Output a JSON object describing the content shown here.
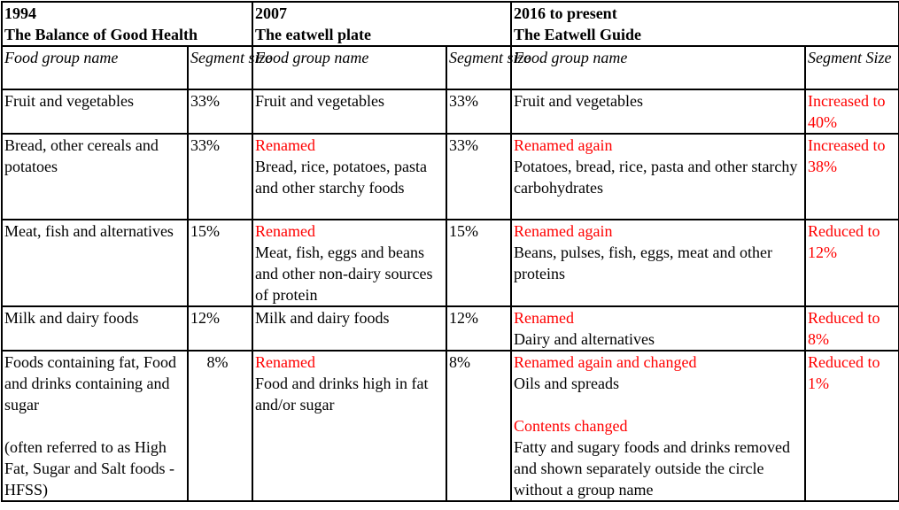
{
  "periods": [
    {
      "year": "1994",
      "model": "The Balance of Good Health"
    },
    {
      "year": "2007",
      "model": "The eatwell plate"
    },
    {
      "year": "2016 to present",
      "model": "The Eatwell Guide"
    }
  ],
  "column_headers": {
    "name_col": "Food group name",
    "size_col_a": "Segment size",
    "size_col_c": "Segment Size"
  },
  "rows": [
    {
      "p1_name": "Fruit and vegetables",
      "p1_size": "33%",
      "p2_name": "Fruit and vegetables",
      "p2_size": "33%",
      "p3_name": "Fruit and vegetables",
      "p3_size": "Increased to 40%"
    },
    {
      "p1_name": "Bread, other cereals and potatoes",
      "p1_size": "33%",
      "p2_note": "Renamed",
      "p2_name": "Bread, rice, potatoes, pasta and other starchy foods",
      "p2_size": "33%",
      "p3_note": "Renamed again",
      "p3_name": "Potatoes, bread, rice, pasta and other starchy carbohydrates",
      "p3_size": "Increased to 38%"
    },
    {
      "p1_name": "Meat, fish and alternatives",
      "p1_size": "15%",
      "p2_note": "Renamed",
      "p2_name": "Meat, fish, eggs and beans and other non-dairy sources of protein",
      "p2_size": "15%",
      "p3_note": "Renamed again",
      "p3_name": "Beans, pulses, fish, eggs, meat and other proteins",
      "p3_size": "Reduced to 12%"
    },
    {
      "p1_name": "Milk and dairy foods",
      "p1_size": "12%",
      "p2_name": "Milk and dairy foods",
      "p2_size": "12%",
      "p3_note": "Renamed",
      "p3_name": "Dairy and alternatives",
      "p3_size": "Reduced to 8%"
    },
    {
      "p1_name": "Foods containing fat, Food and drinks containing and sugar",
      "p1_extra": "(often referred to as High Fat, Sugar and Salt foods - HFSS)",
      "p1_size": "8%",
      "p2_note": "Renamed",
      "p2_name": "Food and drinks high in fat and/or sugar",
      "p2_size": "8%",
      "p3_note": "Renamed again and changed",
      "p3_name": "Oils and spreads",
      "p3_note2": "Contents changed",
      "p3_extra": "Fatty and sugary foods and drinks removed and shown separately outside the circle without a group name",
      "p3_size": "Reduced to 1%"
    }
  ],
  "colors": {
    "text": "#000000",
    "changed": "#ff0000",
    "border": "#000000"
  }
}
